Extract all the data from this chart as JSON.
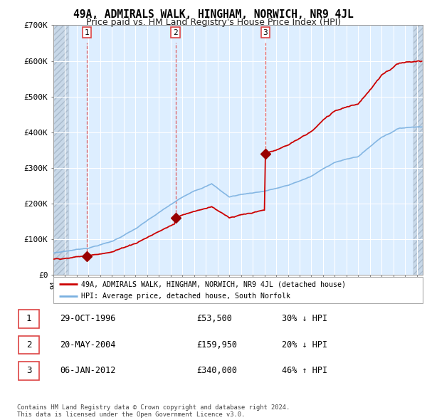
{
  "title": "49A, ADMIRALS WALK, HINGHAM, NORWICH, NR9 4JL",
  "subtitle": "Price paid vs. HM Land Registry's House Price Index (HPI)",
  "ylim": [
    0,
    700000
  ],
  "yticks": [
    0,
    100000,
    200000,
    300000,
    400000,
    500000,
    600000,
    700000
  ],
  "ytick_labels": [
    "£0",
    "£100K",
    "£200K",
    "£300K",
    "£400K",
    "£500K",
    "£600K",
    "£700K"
  ],
  "sale_prices": [
    53500,
    159950,
    340000
  ],
  "sale_labels": [
    "1",
    "2",
    "3"
  ],
  "red_line_color": "#cc0000",
  "blue_line_color": "#7ab0e0",
  "vline_color": "#dd4444",
  "marker_color": "#990000",
  "legend_label_red": "49A, ADMIRALS WALK, HINGHAM, NORWICH, NR9 4JL (detached house)",
  "legend_label_blue": "HPI: Average price, detached house, South Norfolk",
  "table_rows": [
    [
      "1",
      "29-OCT-1996",
      "£53,500",
      "30% ↓ HPI"
    ],
    [
      "2",
      "20-MAY-2004",
      "£159,950",
      "20% ↓ HPI"
    ],
    [
      "3",
      "06-JAN-2012",
      "£340,000",
      "46% ↑ HPI"
    ]
  ],
  "footer": "Contains HM Land Registry data © Crown copyright and database right 2024.\nThis data is licensed under the Open Government Licence v3.0.",
  "plot_bg_color": "#ddeeff",
  "hatch_bg_color": "#c8d8e8"
}
